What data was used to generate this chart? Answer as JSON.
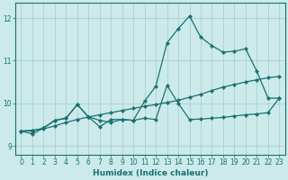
{
  "xlabel": "Humidex (Indice chaleur)",
  "bg_color": "#cceaea",
  "grid_color": "#aad0d0",
  "line_color": "#1a7070",
  "xlim": [
    -0.5,
    23.5
  ],
  "ylim": [
    8.8,
    12.35
  ],
  "yticks": [
    9,
    10,
    11,
    12
  ],
  "xticks": [
    0,
    1,
    2,
    3,
    4,
    5,
    6,
    7,
    8,
    9,
    10,
    11,
    12,
    13,
    14,
    15,
    16,
    17,
    18,
    19,
    20,
    21,
    22,
    23
  ],
  "series1_x": [
    0,
    1,
    2,
    3,
    4,
    5,
    6,
    7,
    8,
    9,
    10,
    11,
    12,
    13,
    14,
    15,
    16,
    17,
    18,
    19,
    20,
    21,
    22,
    23
  ],
  "series1_y": [
    9.35,
    9.37,
    9.4,
    9.47,
    9.55,
    9.62,
    9.68,
    9.73,
    9.78,
    9.83,
    9.88,
    9.93,
    9.97,
    10.02,
    10.07,
    10.14,
    10.21,
    10.3,
    10.38,
    10.44,
    10.5,
    10.55,
    10.6,
    10.63
  ],
  "series2_x": [
    0,
    1,
    2,
    3,
    4,
    5,
    6,
    7,
    8,
    9,
    10,
    11,
    12,
    13,
    14,
    15,
    16,
    17,
    18,
    19,
    20,
    21,
    22,
    23
  ],
  "series2_y": [
    9.35,
    9.35,
    9.42,
    9.6,
    9.65,
    9.97,
    9.68,
    9.6,
    9.55,
    9.62,
    9.6,
    9.65,
    9.62,
    10.42,
    10.0,
    9.62,
    9.63,
    9.65,
    9.67,
    9.7,
    9.73,
    9.75,
    9.78,
    10.12
  ],
  "series3_x": [
    0,
    1,
    2,
    3,
    4,
    5,
    6,
    7,
    8,
    9,
    10,
    11,
    12,
    13,
    14,
    15,
    16,
    17,
    18,
    19,
    20,
    21,
    22,
    23
  ],
  "series3_y": [
    9.35,
    9.28,
    9.42,
    9.6,
    9.65,
    9.97,
    9.68,
    9.45,
    9.62,
    9.62,
    9.6,
    10.05,
    10.4,
    11.42,
    11.75,
    12.05,
    11.55,
    11.35,
    11.2,
    11.22,
    11.28,
    10.75,
    10.12,
    10.12
  ]
}
